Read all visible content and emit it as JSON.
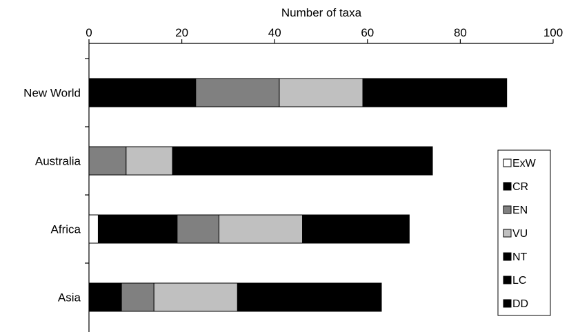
{
  "chart_data": {
    "type": "bar",
    "orientation": "horizontal",
    "stacked": true,
    "title": "",
    "xlabel": "Number of taxa",
    "ylabel": "",
    "xlim": [
      0,
      100
    ],
    "x_ticks": [
      "0",
      "20",
      "40",
      "60",
      "80",
      "100"
    ],
    "x_axis_position": "top",
    "grid": false,
    "legend_position": "right",
    "categories": [
      "New World",
      "Australia",
      "Africa",
      "Asia"
    ],
    "category_labels": [
      "New World",
      "Australia",
      "Africa",
      "Asia"
    ],
    "series": [
      {
        "name": "ExW",
        "color": "#ffffff",
        "values": [
          0,
          0,
          2,
          0
        ]
      },
      {
        "name": "CR",
        "color": "#000000",
        "values": [
          23,
          0,
          17,
          7
        ]
      },
      {
        "name": "EN",
        "color": "#808080",
        "values": [
          18,
          8,
          9,
          7
        ]
      },
      {
        "name": "VU",
        "color": "#c0c0c0",
        "values": [
          18,
          10,
          18,
          18
        ]
      },
      {
        "name": "NT",
        "color": "#000000",
        "values": [
          14,
          14,
          12,
          10
        ]
      },
      {
        "name": "LC",
        "color": "#000000",
        "values": [
          10,
          24,
          7,
          12
        ]
      },
      {
        "name": "DD",
        "color": "#000000",
        "values": [
          7,
          18,
          4,
          9
        ]
      }
    ]
  }
}
